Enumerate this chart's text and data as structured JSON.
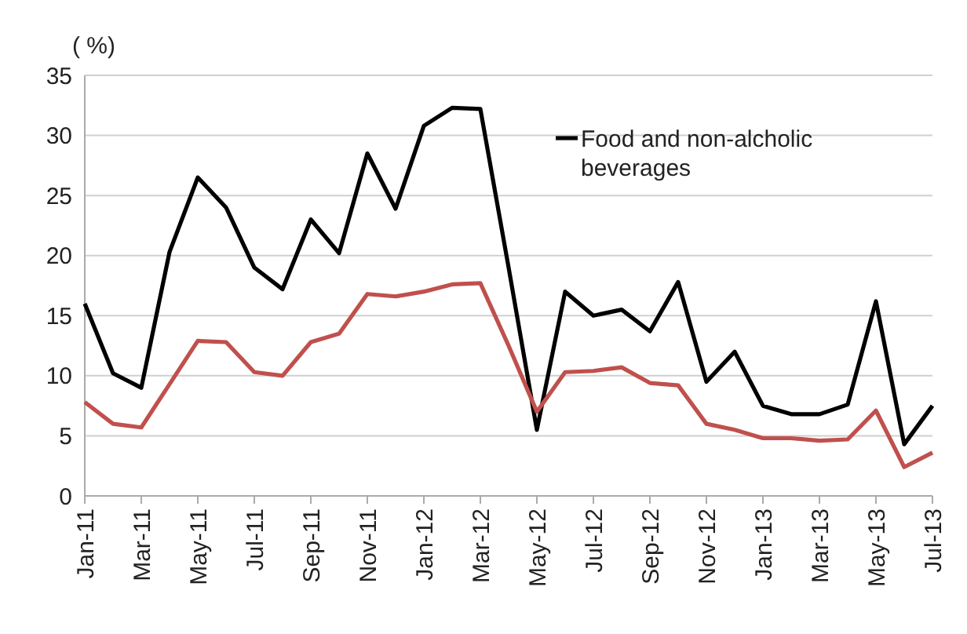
{
  "chart_data": {
    "type": "line",
    "ylabel": "( %)",
    "categories": [
      "Jan-11",
      null,
      "Mar-11",
      null,
      "May-11",
      null,
      "Jul-11",
      null,
      "Sep-11",
      null,
      "Nov-11",
      null,
      "Jan-12",
      null,
      "Mar-12",
      null,
      "May-12",
      null,
      "Jul-12",
      null,
      "Sep-12",
      null,
      "Nov-12",
      null,
      "Jan-13",
      null,
      "Mar-13",
      null,
      "May-13",
      null,
      "Jul-13"
    ],
    "series": [
      {
        "name": "Food and non-alcholic beverages",
        "color": "#000000",
        "values": [
          16,
          10.2,
          9,
          20.3,
          26.5,
          24,
          19,
          17.2,
          23,
          20.2,
          28.5,
          23.9,
          30.8,
          32.3,
          32.2,
          19,
          5.5,
          17,
          15,
          15.5,
          13.7,
          17.8,
          9.5,
          12,
          7.5,
          6.8,
          6.8,
          7.6,
          16.2,
          4.3,
          7.5
        ]
      },
      {
        "color": "#c0504d",
        "values": [
          7.8,
          6,
          5.7,
          9.3,
          12.9,
          12.8,
          10.3,
          10,
          12.8,
          13.5,
          16.8,
          16.6,
          17,
          17.6,
          17.7,
          12.5,
          7,
          10.3,
          10.4,
          10.7,
          9.4,
          9.2,
          6,
          5.5,
          4.8,
          4.8,
          4.6,
          4.7,
          7.1,
          2.4,
          3.6
        ]
      }
    ],
    "ylim": [
      0,
      35
    ],
    "yticks": [
      0,
      5,
      10,
      15,
      20,
      25,
      30,
      35
    ],
    "grid": "y",
    "legend": "top right",
    "marker": "none",
    "line_style": "solid"
  }
}
